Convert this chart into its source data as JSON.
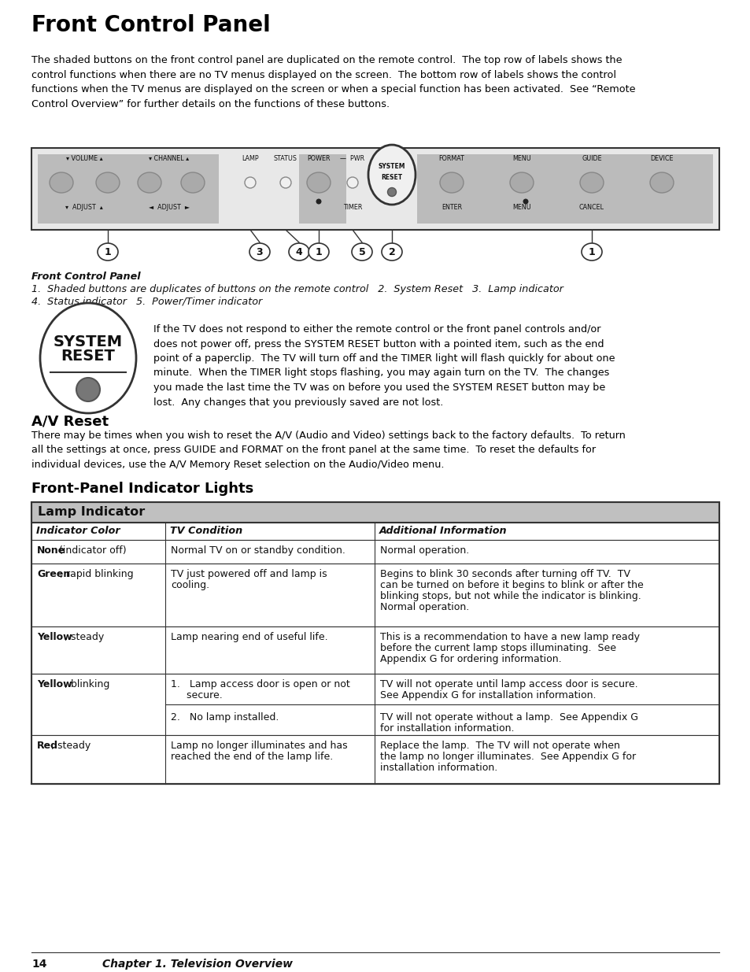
{
  "bg_color": "#ffffff",
  "title": "Front Control Panel",
  "intro_text": "The shaded buttons on the front control panel are duplicated on the remote control.  The top row of labels shows the\ncontrol functions when there are no TV menus displayed on the screen.  The bottom row of labels shows the control\nfunctions when the TV menus are displayed on the screen or when a special function has been activated.  See “Remote\nControl Overview” for further details on the functions of these buttons.",
  "caption_bold": "Front Control Panel",
  "caption_line1": "1.  Shaded buttons are duplicates of buttons on the remote control   2.  System Reset   3.  Lamp indicator",
  "caption_line2": "4.  Status indicator   5.  Power/Timer indicator",
  "reset_text": "If the TV does not respond to either the remote control or the front panel controls and/or\ndoes not power off, press the SYSTEM RESET button with a pointed item, such as the end\npoint of a paperclip.  The TV will turn off and the TIMER light will flash quickly for about one\nminute.  When the TIMER light stops flashing, you may again turn on the TV.  The changes\nyou made the last time the TV was on before you used the SYSTEM RESET button may be\nlost.  Any changes that you previously saved are not lost.",
  "av_reset_title": "A/V Reset",
  "av_reset_text": "There may be times when you wish to reset the A/V (Audio and Video) settings back to the factory defaults.  To return\nall the settings at once, press GUIDE and FORMAT on the front panel at the same time.  To reset the defaults for\nindividual devices, use the A/V Memory Reset selection on the Audio/Video menu.",
  "fp_lights_title": "Front-Panel Indicator Lights",
  "table_title": "Lamp Indicator",
  "table_header": [
    "Indicator Color",
    "TV Condition",
    "Additional Information"
  ],
  "footer_num": "14",
  "footer_text": "Chapter 1. Television Overview"
}
